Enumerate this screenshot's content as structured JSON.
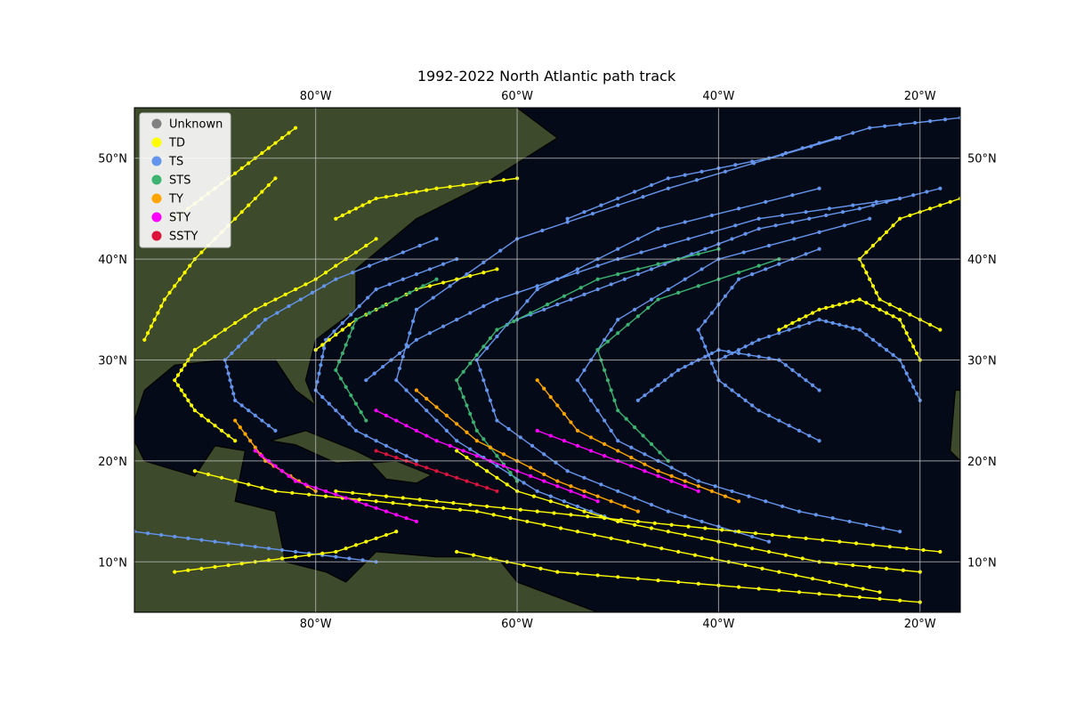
{
  "title": "1992-2022 North Atlantic path track",
  "map": {
    "lon_range": [
      -98,
      -16
    ],
    "lat_range": [
      5,
      55
    ],
    "gridlines": true,
    "basemap": "satellite imagery",
    "ocean_color": "#050a18",
    "land_color": "#3d4a2c"
  },
  "axes": {
    "lon_ticks": [
      {
        "value": -80,
        "label": "80°W"
      },
      {
        "value": -60,
        "label": "60°W"
      },
      {
        "value": -40,
        "label": "40°W"
      },
      {
        "value": -20,
        "label": "20°W"
      }
    ],
    "lat_ticks": [
      {
        "value": 10,
        "label": "10°N"
      },
      {
        "value": 20,
        "label": "20°N"
      },
      {
        "value": 30,
        "label": "30°N"
      },
      {
        "value": 40,
        "label": "40°N"
      },
      {
        "value": 50,
        "label": "50°N"
      }
    ]
  },
  "legend": {
    "placement": "upper-left",
    "entries": [
      {
        "key": "unknown",
        "label": "Unknown",
        "color": "#808080"
      },
      {
        "key": "td",
        "label": "TD",
        "color": "#ffff00"
      },
      {
        "key": "ts",
        "label": "TS",
        "color": "#6495ed"
      },
      {
        "key": "sts",
        "label": "STS",
        "color": "#3cb371"
      },
      {
        "key": "ty",
        "label": "TY",
        "color": "#ffa500"
      },
      {
        "key": "sty",
        "label": "STY",
        "color": "#ff00ff"
      },
      {
        "key": "ssty",
        "label": "SSTY",
        "color": "#dc143c"
      }
    ]
  },
  "chart_data": {
    "type": "scatter",
    "x_axis": "longitude",
    "y_axis": "latitude",
    "series": [
      {
        "name": "TS",
        "color": "#6495ed",
        "tracks": [
          [
            [
              -50,
              14
            ],
            [
              -58,
              17
            ],
            [
              -66,
              22
            ],
            [
              -72,
              28
            ],
            [
              -70,
              35
            ],
            [
              -60,
              42
            ],
            [
              -45,
              47
            ],
            [
              -28,
              52
            ]
          ],
          [
            [
              -35,
              12
            ],
            [
              -45,
              15
            ],
            [
              -55,
              19
            ],
            [
              -62,
              24
            ],
            [
              -64,
              30
            ],
            [
              -58,
              37
            ],
            [
              -46,
              43
            ],
            [
              -30,
              47
            ]
          ],
          [
            [
              -22,
              13
            ],
            [
              -32,
              15
            ],
            [
              -42,
              18
            ],
            [
              -50,
              22
            ],
            [
              -54,
              28
            ],
            [
              -50,
              34
            ],
            [
              -40,
              40
            ],
            [
              -25,
              44
            ]
          ],
          [
            [
              -75,
              28
            ],
            [
              -70,
              32
            ],
            [
              -62,
              36
            ],
            [
              -50,
              40
            ],
            [
              -36,
              44
            ],
            [
              -22,
              46
            ]
          ],
          [
            [
              -40,
              30
            ],
            [
              -36,
              32
            ],
            [
              -30,
              34
            ],
            [
              -26,
              33
            ],
            [
              -22,
              30
            ],
            [
              -20,
              26
            ]
          ],
          [
            [
              -60,
              34
            ],
            [
              -52,
              37
            ],
            [
              -44,
              40
            ],
            [
              -36,
              43
            ],
            [
              -26,
              45
            ],
            [
              -18,
              47
            ]
          ],
          [
            [
              -84,
              23
            ],
            [
              -88,
              26
            ],
            [
              -89,
              30
            ],
            [
              -85,
              34
            ],
            [
              -78,
              38
            ],
            [
              -68,
              42
            ]
          ],
          [
            [
              -98,
              13
            ],
            [
              -90,
              12
            ],
            [
              -82,
              11
            ],
            [
              -74,
              10
            ]
          ],
          [
            [
              -55,
              44
            ],
            [
              -45,
              48
            ],
            [
              -35,
              50
            ],
            [
              -25,
              53
            ],
            [
              -16,
              54
            ]
          ],
          [
            [
              -48,
              26
            ],
            [
              -44,
              29
            ],
            [
              -40,
              31
            ],
            [
              -34,
              30
            ],
            [
              -30,
              27
            ]
          ],
          [
            [
              -70,
              20
            ],
            [
              -76,
              23
            ],
            [
              -80,
              27
            ],
            [
              -79,
              32
            ],
            [
              -74,
              37
            ],
            [
              -66,
              40
            ]
          ],
          [
            [
              -30,
              22
            ],
            [
              -36,
              25
            ],
            [
              -40,
              28
            ],
            [
              -42,
              33
            ],
            [
              -38,
              38
            ],
            [
              -30,
              41
            ]
          ]
        ]
      },
      {
        "name": "TD",
        "color": "#ffff00",
        "tracks": [
          [
            [
              -24,
              7
            ],
            [
              -34,
              9
            ],
            [
              -44,
              11
            ],
            [
              -54,
              13
            ],
            [
              -64,
              15
            ],
            [
              -74,
              16
            ],
            [
              -84,
              17
            ],
            [
              -92,
              19
            ]
          ],
          [
            [
              -18,
              11
            ],
            [
              -28,
              12
            ],
            [
              -38,
              13
            ],
            [
              -48,
              14
            ],
            [
              -58,
              15
            ],
            [
              -68,
              16
            ],
            [
              -78,
              17
            ]
          ],
          [
            [
              -20,
              9
            ],
            [
              -30,
              10
            ],
            [
              -40,
              12
            ],
            [
              -50,
              14
            ],
            [
              -60,
              17
            ],
            [
              -66,
              21
            ]
          ],
          [
            [
              -88,
              22
            ],
            [
              -92,
              25
            ],
            [
              -94,
              28
            ],
            [
              -92,
              31
            ],
            [
              -86,
              35
            ],
            [
              -80,
              38
            ],
            [
              -74,
              42
            ]
          ],
          [
            [
              -94,
              9
            ],
            [
              -86,
              10
            ],
            [
              -78,
              11
            ],
            [
              -72,
              13
            ]
          ],
          [
            [
              -84,
              48
            ],
            [
              -88,
              44
            ],
            [
              -92,
              40
            ],
            [
              -95,
              36
            ],
            [
              -97,
              32
            ]
          ],
          [
            [
              -20,
              6
            ],
            [
              -32,
              7
            ],
            [
              -44,
              8
            ],
            [
              -56,
              9
            ],
            [
              -66,
              11
            ]
          ],
          [
            [
              -78,
              44
            ],
            [
              -74,
              46
            ],
            [
              -68,
              47
            ],
            [
              -60,
              48
            ]
          ],
          [
            [
              -34,
              33
            ],
            [
              -30,
              35
            ],
            [
              -26,
              36
            ],
            [
              -22,
              34
            ],
            [
              -20,
              30
            ]
          ],
          [
            [
              -16,
              46
            ],
            [
              -22,
              44
            ],
            [
              -26,
              40
            ],
            [
              -24,
              36
            ],
            [
              -18,
              33
            ]
          ],
          [
            [
              -82,
              53
            ],
            [
              -86,
              50
            ],
            [
              -90,
              47
            ],
            [
              -94,
              44
            ]
          ],
          [
            [
              -80,
              31
            ],
            [
              -76,
              34
            ],
            [
              -70,
              37
            ],
            [
              -62,
              39
            ]
          ]
        ]
      },
      {
        "name": "STS",
        "color": "#3cb371",
        "tracks": [
          [
            [
              -60,
              18
            ],
            [
              -64,
              23
            ],
            [
              -66,
              28
            ],
            [
              -62,
              33
            ],
            [
              -52,
              38
            ],
            [
              -40,
              41
            ]
          ],
          [
            [
              -45,
              20
            ],
            [
              -50,
              25
            ],
            [
              -52,
              31
            ],
            [
              -46,
              36
            ],
            [
              -34,
              40
            ]
          ],
          [
            [
              -75,
              24
            ],
            [
              -78,
              29
            ],
            [
              -76,
              34
            ],
            [
              -68,
              38
            ]
          ]
        ]
      },
      {
        "name": "TY",
        "color": "#ffa500",
        "tracks": [
          [
            [
              -48,
              15
            ],
            [
              -56,
              18
            ],
            [
              -64,
              22
            ],
            [
              -70,
              27
            ]
          ],
          [
            [
              -38,
              16
            ],
            [
              -46,
              19
            ],
            [
              -54,
              23
            ],
            [
              -58,
              28
            ]
          ],
          [
            [
              -80,
              17
            ],
            [
              -85,
              20
            ],
            [
              -88,
              24
            ]
          ]
        ]
      },
      {
        "name": "STY",
        "color": "#ff00ff",
        "tracks": [
          [
            [
              -52,
              16
            ],
            [
              -60,
              19
            ],
            [
              -68,
              22
            ],
            [
              -74,
              25
            ]
          ],
          [
            [
              -42,
              17
            ],
            [
              -50,
              20
            ],
            [
              -58,
              23
            ]
          ],
          [
            [
              -70,
              14
            ],
            [
              -76,
              16
            ],
            [
              -82,
              18
            ],
            [
              -86,
              21
            ]
          ]
        ]
      },
      {
        "name": "SSTY",
        "color": "#dc143c",
        "tracks": [
          [
            [
              -62,
              17
            ],
            [
              -68,
              19
            ],
            [
              -74,
              21
            ]
          ]
        ]
      }
    ]
  }
}
